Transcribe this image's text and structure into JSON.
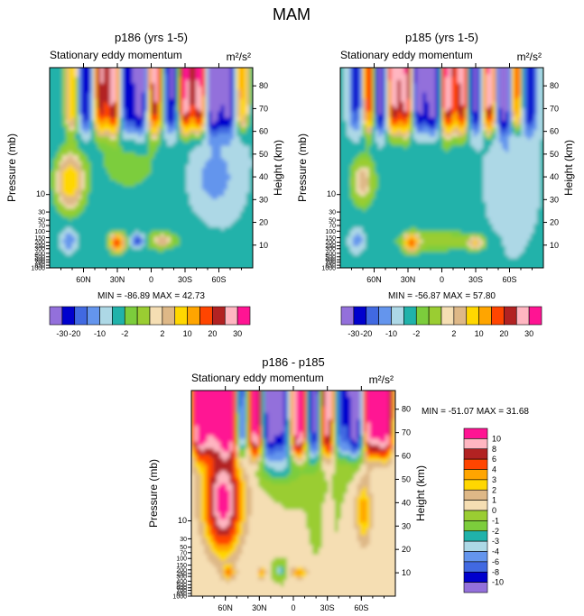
{
  "figure_title": "MAM",
  "chart_data": [
    {
      "type": "heatmap",
      "title": "p186 (yrs 1-5)",
      "subtitle": "Stationary eddy momentum",
      "units": "m²/s²",
      "ylabel": "Pressure (mb)",
      "y2label": "Height (km)",
      "x_ticks": [
        "60N",
        "30N",
        "0",
        "30S",
        "60S"
      ],
      "x_tick_values": [
        60,
        30,
        0,
        -30,
        -60
      ],
      "xlim": [
        90,
        -90
      ],
      "p_ticks": [
        "10",
        "30",
        "50",
        "70",
        "100",
        "150",
        "200",
        "250",
        "300",
        "400",
        "500",
        "600",
        "700",
        "850",
        "1000"
      ],
      "p_tick_values": [
        10,
        30,
        50,
        70,
        100,
        150,
        200,
        250,
        300,
        400,
        500,
        600,
        700,
        850,
        1000
      ],
      "z_ticks": [
        "10",
        "20",
        "30",
        "40",
        "50",
        "60",
        "70",
        "80"
      ],
      "z_tick_values": [
        10,
        20,
        30,
        40,
        50,
        60,
        70,
        80
      ],
      "min_label": "MIN = -86.89",
      "max_label": "MAX = 42.73",
      "min": -86.89,
      "max": 42.73,
      "levels": [
        -30,
        -20,
        -15,
        -10,
        -5,
        -2,
        -1,
        1,
        2,
        5,
        10,
        15,
        20,
        25,
        30
      ],
      "colorbar_labels": [
        "-30",
        "-20",
        "-10",
        "-2",
        "2",
        "10",
        "20",
        "30"
      ]
    },
    {
      "type": "heatmap",
      "title": "p185 (yrs 1-5)",
      "subtitle": "Stationary eddy momentum",
      "units": "m²/s²",
      "ylabel": "Pressure (mb)",
      "y2label": "Height (km)",
      "x_ticks": [
        "60N",
        "30N",
        "0",
        "30S",
        "60S"
      ],
      "x_tick_values": [
        60,
        30,
        0,
        -30,
        -60
      ],
      "xlim": [
        90,
        -90
      ],
      "p_ticks": [
        "10",
        "30",
        "50",
        "70",
        "100",
        "150",
        "200",
        "250",
        "300",
        "400",
        "500",
        "600",
        "700",
        "850",
        "1000"
      ],
      "p_tick_values": [
        10,
        30,
        50,
        70,
        100,
        150,
        200,
        250,
        300,
        400,
        500,
        600,
        700,
        850,
        1000
      ],
      "z_ticks": [
        "10",
        "20",
        "30",
        "40",
        "50",
        "60",
        "70",
        "80"
      ],
      "z_tick_values": [
        10,
        20,
        30,
        40,
        50,
        60,
        70,
        80
      ],
      "min_label": "MIN = -56.87",
      "max_label": "MAX = 57.80",
      "min": -56.87,
      "max": 57.8,
      "levels": [
        -30,
        -20,
        -15,
        -10,
        -5,
        -2,
        -1,
        1,
        2,
        5,
        10,
        15,
        20,
        25,
        30
      ],
      "colorbar_labels": [
        "-30",
        "-20",
        "-10",
        "-2",
        "2",
        "10",
        "20",
        "30"
      ]
    },
    {
      "type": "heatmap",
      "title": "p186 - p185",
      "subtitle": "Stationary eddy momentum",
      "units": "m²/s²",
      "ylabel": "Pressure (mb)",
      "y2label": "Height (km)",
      "x_ticks": [
        "60N",
        "30N",
        "0",
        "30S",
        "60S"
      ],
      "x_tick_values": [
        60,
        30,
        0,
        -30,
        -60
      ],
      "xlim": [
        90,
        -90
      ],
      "p_ticks": [
        "10",
        "30",
        "50",
        "70",
        "100",
        "150",
        "200",
        "250",
        "300",
        "400",
        "500",
        "600",
        "700",
        "850",
        "1000"
      ],
      "p_tick_values": [
        10,
        30,
        50,
        70,
        100,
        150,
        200,
        250,
        300,
        400,
        500,
        600,
        700,
        850,
        1000
      ],
      "z_ticks": [
        "10",
        "20",
        "30",
        "40",
        "50",
        "60",
        "70",
        "80"
      ],
      "z_tick_values": [
        10,
        20,
        30,
        40,
        50,
        60,
        70,
        80
      ],
      "min_label": "MIN = -51.07",
      "max_label": "MAX = 31.68",
      "min": -51.07,
      "max": 31.68,
      "levels": [
        -10,
        -8,
        -6,
        -4,
        -3,
        -2,
        -1,
        0,
        1,
        2,
        3,
        4,
        6,
        8,
        10
      ],
      "colorbar_labels": [
        "10",
        "8",
        "6",
        "4",
        "3",
        "2",
        "1",
        "0",
        "-1",
        "-2",
        "-3",
        "-4",
        "-6",
        "-8",
        "-10"
      ]
    }
  ],
  "palette": [
    "#9370db",
    "#0000cd",
    "#4169e1",
    "#6495ed",
    "#add8e6",
    "#20b2aa",
    "#7ccd3c",
    "#9acd32",
    "#f5deb3",
    "#deb887",
    "#ffd700",
    "#ffa500",
    "#ff4500",
    "#b22222",
    "#ffb6c1",
    "#ff1493"
  ]
}
